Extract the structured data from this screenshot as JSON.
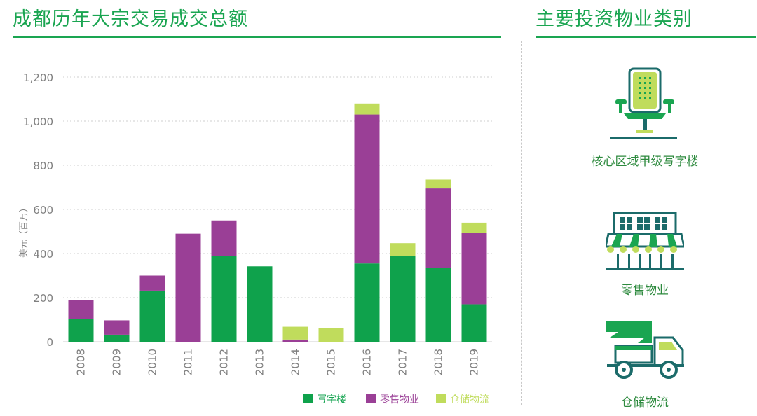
{
  "colors": {
    "accent": "#1aa551",
    "office": "#0fa24c",
    "retail": "#9a3f96",
    "logistics": "#c0dc5c",
    "grid": "#cfcfcf",
    "text": "#808080",
    "icon_dark": "#1b6b6a"
  },
  "left_panel": {
    "title": "成都历年大宗交易成交总额"
  },
  "right_panel": {
    "title": "主要投资物业类别",
    "items": [
      {
        "icon": "office-chair-icon",
        "label": "核心区域甲级写字楼"
      },
      {
        "icon": "storefront-icon",
        "label": "零售物业"
      },
      {
        "icon": "delivery-truck-icon",
        "label": "仓储物流"
      }
    ]
  },
  "chart_data": {
    "type": "bar",
    "stacked": true,
    "categories": [
      "2008",
      "2009",
      "2010",
      "2011",
      "2012",
      "2013",
      "2014",
      "2015",
      "2016",
      "2017",
      "2018",
      "2019"
    ],
    "series": [
      {
        "name": "写字楼",
        "color": "#0fa24c",
        "values": [
          103,
          32,
          232,
          0,
          388,
          342,
          0,
          0,
          355,
          390,
          335,
          170
        ]
      },
      {
        "name": "零售物业",
        "color": "#9a3f96",
        "values": [
          85,
          65,
          68,
          490,
          162,
          0,
          10,
          0,
          675,
          0,
          360,
          325
        ]
      },
      {
        "name": "仓储物流",
        "color": "#c0dc5c",
        "values": [
          0,
          0,
          0,
          0,
          0,
          0,
          58,
          62,
          50,
          57,
          40,
          45
        ]
      }
    ],
    "ylabel": "美元（百万）",
    "ylim": [
      0,
      1200
    ],
    "yticks": [
      0,
      200,
      400,
      600,
      800,
      1000,
      1200
    ],
    "ytick_labels": [
      "0",
      "200",
      "400",
      "600",
      "800",
      "1,000",
      "1,200"
    ],
    "grid": true,
    "legend_position": "bottom-right"
  }
}
